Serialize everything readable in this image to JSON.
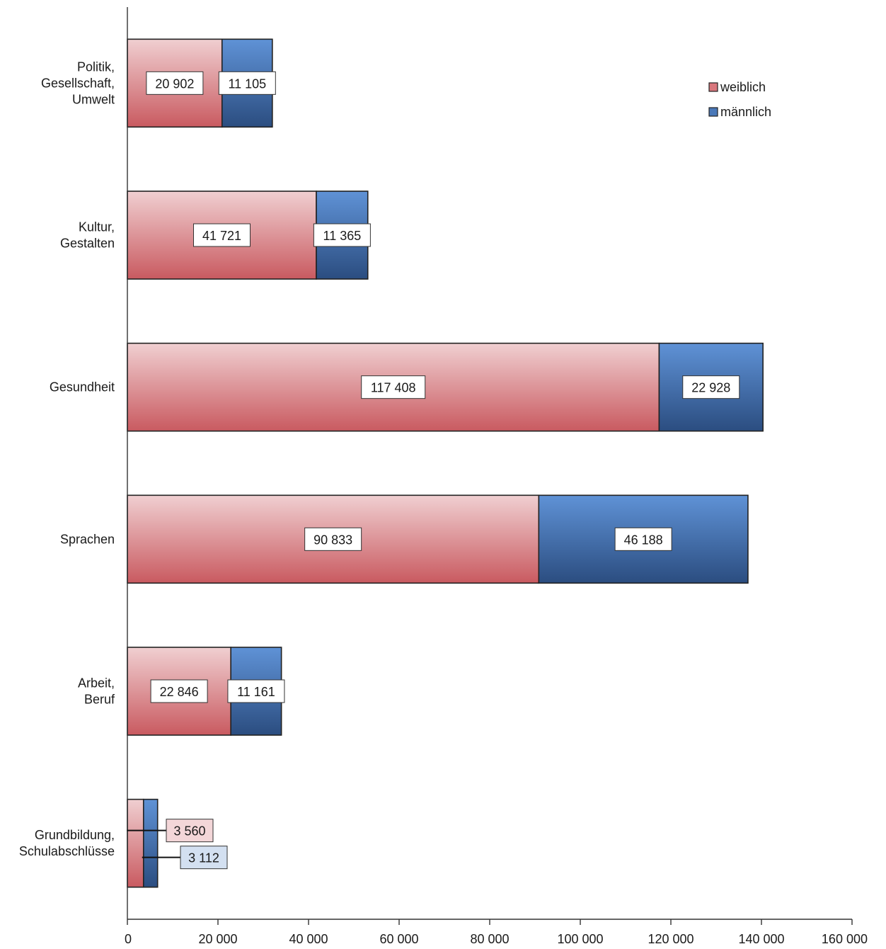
{
  "chart_data": {
    "type": "bar",
    "orientation": "horizontal",
    "stacked": true,
    "categories": [
      "Politik,\nGesellschaft,\nUmwelt",
      "Kultur,\nGestalten",
      "Gesundheit",
      "Sprachen",
      "Arbeit,\nBeruf",
      "Grundbildung,\nSchulabschlüsse"
    ],
    "series": [
      {
        "name": "weiblich",
        "values": [
          20902,
          41721,
          117408,
          90833,
          22846,
          3560
        ],
        "labels": [
          "20 902",
          "41 721",
          "117 408",
          "90 833",
          "22 846",
          "3 560"
        ],
        "color": "#d9777d"
      },
      {
        "name": "männlich",
        "values": [
          11105,
          11365,
          22928,
          46188,
          11161,
          3112
        ],
        "labels": [
          "11 105",
          "11 365",
          "22 928",
          "46 188",
          "11 161",
          "3 112"
        ],
        "color": "#4a78b8"
      }
    ],
    "xlim": [
      0,
      160000
    ],
    "x_ticks": [
      0,
      20000,
      40000,
      60000,
      80000,
      100000,
      120000,
      140000,
      160000
    ],
    "x_tick_labels": [
      "0",
      "20 000",
      "40 000",
      "60 000",
      "80 000",
      "100 000",
      "120 000",
      "140 000",
      "160 000"
    ],
    "legend_position": "top-right",
    "grid": false,
    "title": "",
    "xlabel": "",
    "ylabel": ""
  }
}
